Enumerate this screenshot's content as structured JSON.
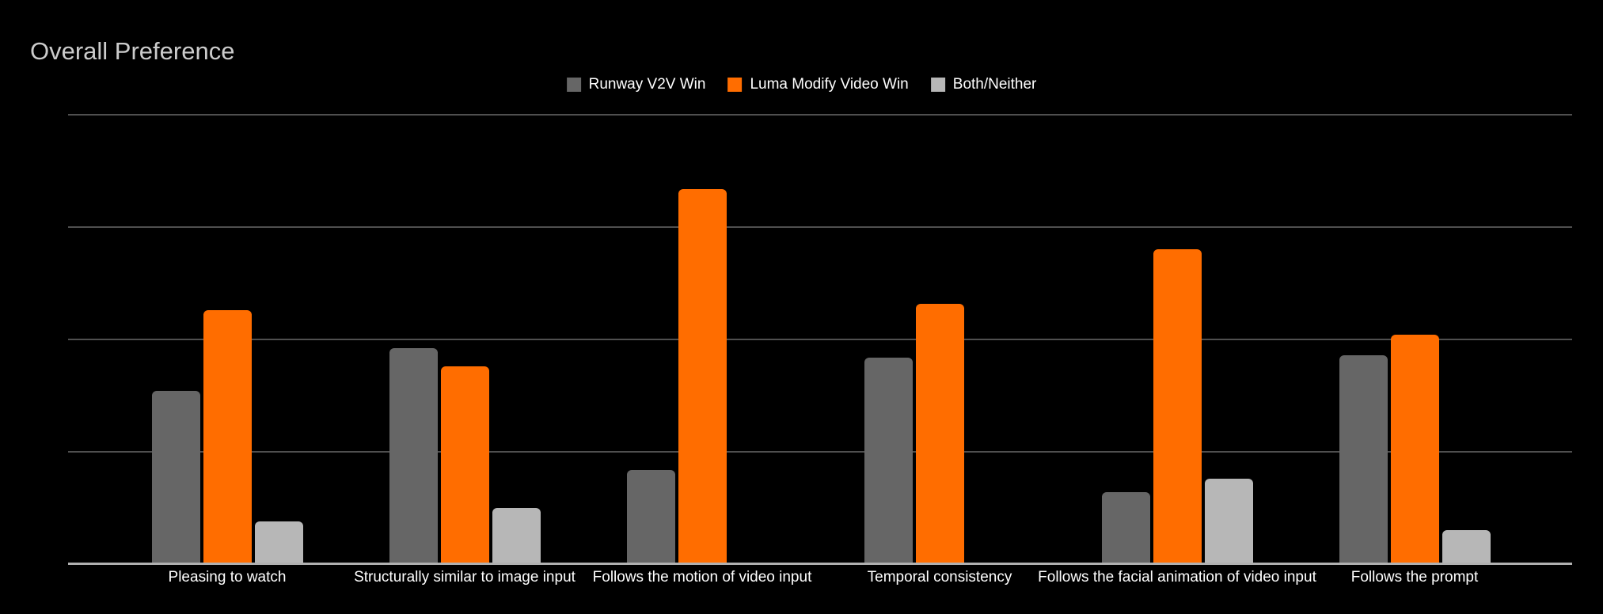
{
  "chart_data": {
    "type": "bar",
    "title": "Overall Preference",
    "categories": [
      "Pleasing to watch",
      "Structurally similar to image input",
      "Follows the motion of video input",
      "Temporal consistency",
      "Follows the facial animation of video input",
      "Follows the prompt"
    ],
    "series": [
      {
        "name": "Runway V2V Win",
        "color": "#666666",
        "values": [
          38.5,
          48,
          21,
          46,
          16,
          46.5
        ]
      },
      {
        "name": "Luma Modify Video Win",
        "color": "#ff6d00",
        "values": [
          56.5,
          44,
          83.5,
          58,
          70,
          51
        ]
      },
      {
        "name": "Both/Neither",
        "color": "#b7b7b7",
        "values": [
          9.5,
          12.5,
          0,
          0,
          19,
          7.5
        ]
      }
    ],
    "xlabel": "",
    "ylabel": "",
    "ylim": [
      0,
      100
    ],
    "gridline_values": [
      0,
      25,
      50,
      75,
      100
    ],
    "y_tick_labels_visible": false,
    "grid": true,
    "legend_position": "top-center",
    "values_are_estimates_read_from_gridlines": true
  },
  "colors": {
    "background": "#000000",
    "title_text": "#cccccc",
    "legend_text": "#ffffff",
    "axis_label_text": "#ffffff",
    "gridline": "#4f4f4f",
    "axis_baseline": "#b0b0b0"
  }
}
